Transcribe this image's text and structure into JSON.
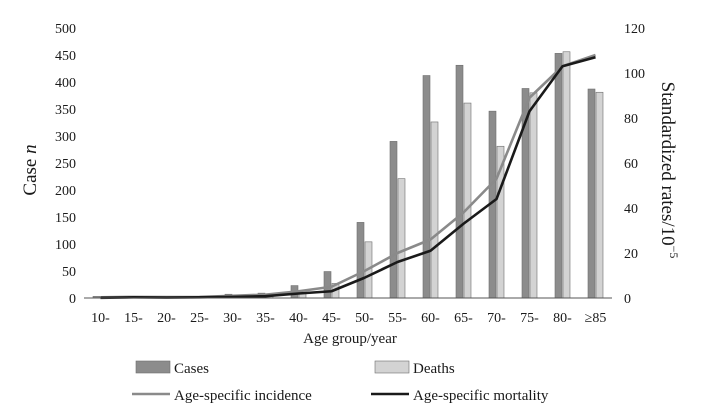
{
  "chart_data": {
    "type": "bar",
    "categories": [
      "10-",
      "15-",
      "20-",
      "25-",
      "30-",
      "35-",
      "40-",
      "45-",
      "50-",
      "55-",
      "60-",
      "65-",
      "70-",
      "75-",
      "80-",
      "≥85"
    ],
    "xlabel": "Age group/year",
    "ylabel_left": "Case",
    "ylabel_left_italic": "n",
    "ylabel_right": "Standardized rates/10",
    "ylabel_right_sup": "−5",
    "ylim_left": [
      0,
      500
    ],
    "ylim_right": [
      0,
      120
    ],
    "yticks_left": [
      0,
      50,
      100,
      150,
      200,
      250,
      300,
      350,
      400,
      450,
      500
    ],
    "yticks_right": [
      0,
      20,
      40,
      60,
      80,
      100,
      120
    ],
    "grid": false,
    "legend_position": "bottom",
    "series": [
      {
        "name": "Cases",
        "kind": "bar",
        "axis": "left",
        "color": "#8c8c8c",
        "values": [
          3,
          1,
          1,
          1,
          7,
          9,
          23,
          49,
          140,
          290,
          412,
          431,
          346,
          388,
          453,
          387
        ]
      },
      {
        "name": "Deaths",
        "kind": "bar",
        "axis": "left",
        "color": "#d3d3d3",
        "values": [
          1,
          1,
          1,
          1,
          3,
          4,
          10,
          27,
          104,
          221,
          326,
          361,
          281,
          380,
          456,
          381
        ]
      },
      {
        "name": "Age-specific incidence",
        "kind": "line",
        "axis": "right",
        "color": "#8a8a8a",
        "values": [
          0.3,
          0.5,
          0.4,
          0.5,
          1.0,
          1.5,
          3.0,
          5.0,
          12.0,
          20.0,
          26.0,
          38.0,
          53.0,
          89.0,
          103.0,
          108.0
        ]
      },
      {
        "name": "Age-specific mortality",
        "kind": "line",
        "axis": "right",
        "color": "#1a1a1a",
        "values": [
          0.1,
          0.3,
          0.2,
          0.3,
          0.5,
          0.8,
          2.0,
          3.0,
          9.0,
          16.0,
          21.0,
          33.0,
          44.0,
          83.0,
          103.0,
          107.0
        ]
      }
    ]
  }
}
